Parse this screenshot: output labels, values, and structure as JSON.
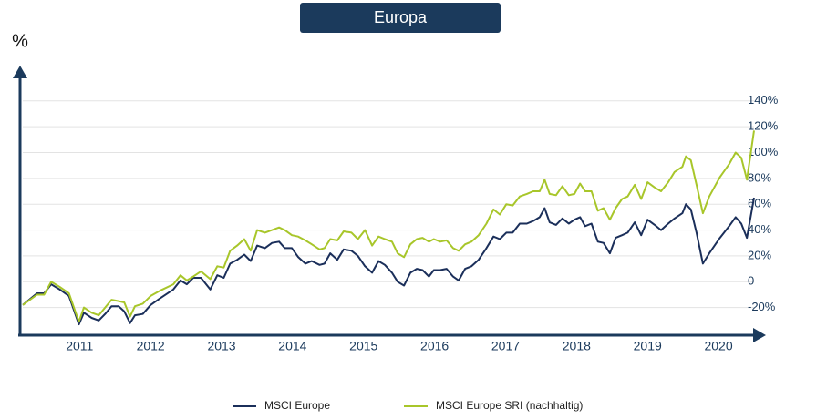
{
  "chart_data": {
    "type": "line",
    "title": "Europa",
    "y_label": "%",
    "xlim": [
      2010.7,
      2021.0
    ],
    "xticks": [
      {
        "value": 2011.5,
        "label": "2011"
      },
      {
        "value": 2012.5,
        "label": "2012"
      },
      {
        "value": 2013.5,
        "label": "2013"
      },
      {
        "value": 2014.5,
        "label": "2014"
      },
      {
        "value": 2015.5,
        "label": "2015"
      },
      {
        "value": 2016.5,
        "label": "2016"
      },
      {
        "value": 2017.5,
        "label": "2017"
      },
      {
        "value": 2018.5,
        "label": "2018"
      },
      {
        "value": 2019.5,
        "label": "2019"
      },
      {
        "value": 2020.5,
        "label": "2020"
      }
    ],
    "ylim": [
      -40,
      155
    ],
    "yticks": [
      {
        "value": -20,
        "label": "-20%"
      },
      0,
      {
        "value": 20,
        "label": "20%"
      },
      {
        "value": 40,
        "label": "40%"
      },
      {
        "value": 60,
        "label": "60%"
      },
      {
        "value": 80,
        "label": "80%"
      },
      {
        "value": 100,
        "label": "100%"
      },
      {
        "value": 120,
        "label": "120%"
      },
      {
        "value": 140,
        "label": "140%"
      }
    ],
    "grid": true,
    "x": [
      2010.7,
      2010.9,
      2011.0,
      2011.1,
      2011.22,
      2011.35,
      2011.49,
      2011.56,
      2011.67,
      2011.77,
      2011.86,
      2011.95,
      2012.05,
      2012.13,
      2012.21,
      2012.28,
      2012.39,
      2012.5,
      2012.63,
      2012.82,
      2012.92,
      2013.01,
      2013.1,
      2013.21,
      2013.34,
      2013.44,
      2013.53,
      2013.62,
      2013.72,
      2013.82,
      2013.91,
      2014.0,
      2014.11,
      2014.21,
      2014.31,
      2014.39,
      2014.49,
      2014.58,
      2014.68,
      2014.77,
      2014.88,
      2014.95,
      2015.03,
      2015.13,
      2015.22,
      2015.33,
      2015.42,
      2015.52,
      2015.62,
      2015.71,
      2015.8,
      2015.9,
      2015.98,
      2016.07,
      2016.16,
      2016.25,
      2016.33,
      2016.42,
      2016.49,
      2016.58,
      2016.67,
      2016.76,
      2016.84,
      2016.93,
      2017.02,
      2017.12,
      2017.23,
      2017.33,
      2017.42,
      2017.51,
      2017.6,
      2017.7,
      2017.8,
      2017.89,
      2017.98,
      2018.05,
      2018.12,
      2018.21,
      2018.3,
      2018.39,
      2018.47,
      2018.55,
      2018.62,
      2018.71,
      2018.8,
      2018.88,
      2018.97,
      2019.05,
      2019.14,
      2019.22,
      2019.32,
      2019.41,
      2019.5,
      2019.6,
      2019.69,
      2019.79,
      2019.88,
      2019.99,
      2020.04,
      2020.11,
      2020.19,
      2020.28,
      2020.37,
      2020.52,
      2020.65,
      2020.74,
      2020.82,
      2020.9,
      2021.0
    ],
    "series": [
      {
        "name": "MSCI Europe",
        "color": "#1b2f5a",
        "values": [
          -18,
          -9,
          -9,
          -2,
          -6,
          -11,
          -33,
          -24,
          -28,
          -30,
          -25,
          -19,
          -19,
          -23,
          -32,
          -26,
          -25,
          -18,
          -13,
          -6,
          1,
          -2,
          3,
          3,
          -6,
          5,
          3,
          14,
          17,
          21,
          16,
          28,
          26,
          30,
          31,
          26,
          26,
          19,
          14,
          16,
          13,
          14,
          22,
          17,
          25,
          24,
          20,
          12,
          7,
          16,
          13,
          7,
          0,
          -3,
          7,
          10,
          9,
          4,
          9,
          9,
          10,
          4,
          1,
          10,
          12,
          17,
          26,
          35,
          33,
          38,
          38,
          45,
          45,
          47,
          50,
          57,
          46,
          44,
          49,
          45,
          48,
          50,
          43,
          45,
          31,
          30,
          22,
          34,
          36,
          38,
          46,
          36,
          48,
          44,
          40,
          45,
          49,
          53,
          60,
          56,
          38,
          14,
          22,
          34,
          43,
          50,
          45,
          34,
          65
        ]
      },
      {
        "name": "MSCI Europe SRI (nachhaltig)",
        "color": "#a8c62a",
        "values": [
          -18,
          -10,
          -10,
          0,
          -4,
          -9,
          -31,
          -20,
          -24,
          -26,
          -20,
          -14,
          -15,
          -16,
          -27,
          -19,
          -17,
          -11,
          -7,
          -2,
          5,
          1,
          4,
          8,
          2,
          12,
          11,
          24,
          28,
          33,
          24,
          40,
          38,
          40,
          42,
          40,
          36,
          35,
          32,
          29,
          25,
          26,
          33,
          32,
          39,
          38,
          33,
          40,
          28,
          35,
          33,
          31,
          22,
          19,
          29,
          33,
          34,
          31,
          33,
          31,
          32,
          26,
          24,
          29,
          31,
          36,
          45,
          56,
          52,
          60,
          59,
          66,
          68,
          70,
          70,
          79,
          68,
          67,
          74,
          67,
          68,
          76,
          70,
          70,
          55,
          57,
          48,
          57,
          64,
          66,
          75,
          64,
          77,
          73,
          70,
          77,
          85,
          89,
          97,
          94,
          75,
          53,
          66,
          81,
          91,
          100,
          96,
          79,
          117
        ]
      }
    ]
  }
}
